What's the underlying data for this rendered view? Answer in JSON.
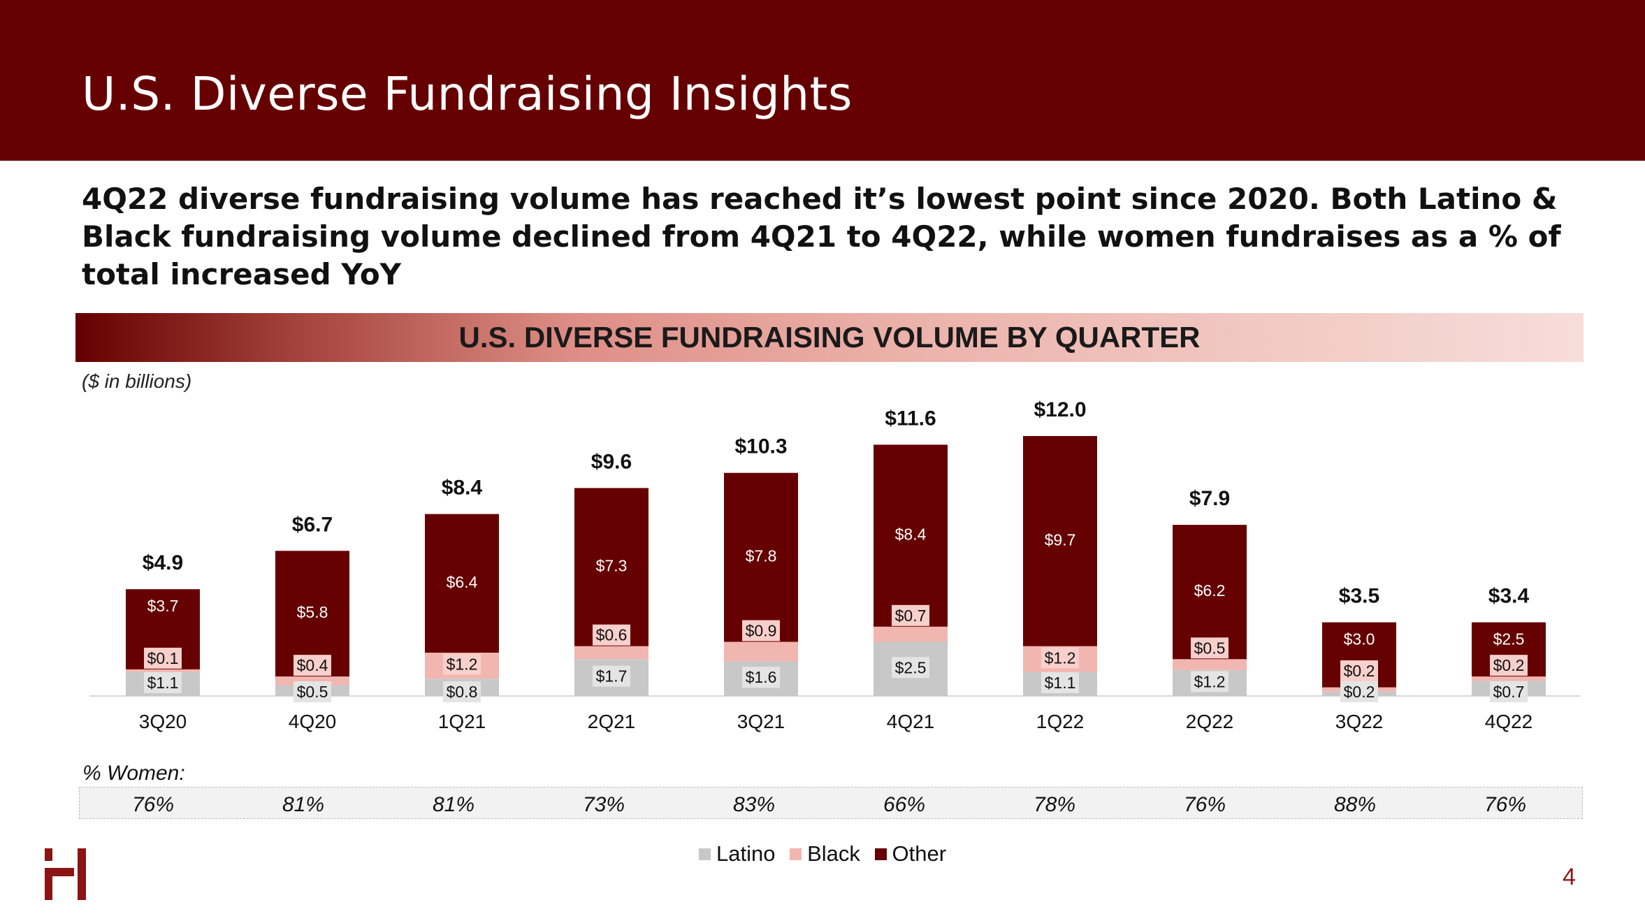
{
  "header": {
    "title": "U.S. Diverse Fundraising Insights"
  },
  "subtitle": "4Q22 diverse fundraising volume has reached it’s lowest point since 2020. Both Latino & Black fundraising volume declined from 4Q21 to 4Q22, while women fundraises as a % of total increased YoY",
  "banner": {
    "title": "U.S. DIVERSE FUNDRAISING VOLUME BY QUARTER"
  },
  "units_note": "($ in billions)",
  "colors": {
    "latino": "#c8c8c8",
    "black": "#f2b6b0",
    "other": "#660000",
    "header": "#660000"
  },
  "chart_data": {
    "type": "bar",
    "stacked": true,
    "categories": [
      "3Q20",
      "4Q20",
      "1Q21",
      "2Q21",
      "3Q21",
      "4Q21",
      "1Q22",
      "2Q22",
      "3Q22",
      "4Q22"
    ],
    "series": [
      {
        "name": "Latino",
        "values": [
          1.1,
          0.5,
          0.8,
          1.7,
          1.6,
          2.5,
          1.1,
          1.2,
          0.2,
          0.7
        ],
        "labels": [
          "$1.1",
          "$0.5",
          "$0.8",
          "$1.7",
          "$1.6",
          "$2.5",
          "$1.1",
          "$1.2",
          "$0.2",
          "$0.7"
        ]
      },
      {
        "name": "Black",
        "values": [
          0.1,
          0.4,
          1.2,
          0.6,
          0.9,
          0.7,
          1.2,
          0.5,
          0.2,
          0.2
        ],
        "labels": [
          "$0.1",
          "$0.4",
          "$1.2",
          "$0.6",
          "$0.9",
          "$0.7",
          "$1.2",
          "$0.5",
          "$0.2",
          "$0.2"
        ]
      },
      {
        "name": "Other",
        "values": [
          3.7,
          5.8,
          6.4,
          7.3,
          7.8,
          8.4,
          9.7,
          6.2,
          3.0,
          2.5
        ],
        "labels": [
          "$3.7",
          "$5.8",
          "$6.4",
          "$7.3",
          "$7.8",
          "$8.4",
          "$9.7",
          "$6.2",
          "$3.0",
          "$2.5"
        ]
      }
    ],
    "totals": [
      4.9,
      6.7,
      8.4,
      9.6,
      10.3,
      11.6,
      12.0,
      7.9,
      3.5,
      3.4
    ],
    "total_labels": [
      "$4.9",
      "$6.7",
      "$8.4",
      "$9.6",
      "$10.3",
      "$11.6",
      "$12.0",
      "$7.9",
      "$3.5",
      "$3.4"
    ],
    "ylim": [
      0,
      12.5
    ],
    "legend_position": "bottom-center"
  },
  "women": {
    "label": "% Women:",
    "values": [
      "76%",
      "81%",
      "81%",
      "73%",
      "83%",
      "66%",
      "78%",
      "76%",
      "88%",
      "76%"
    ]
  },
  "legend": {
    "latino": "Latino",
    "black": "Black",
    "other": "Other"
  },
  "page_number": "4"
}
